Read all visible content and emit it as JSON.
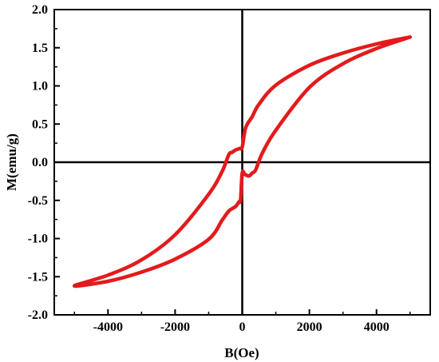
{
  "chart_data": {
    "type": "line",
    "title": "",
    "xlabel": "B(Oe)",
    "ylabel": "M(emu/g)",
    "xlim": [
      -5600,
      5600
    ],
    "ylim": [
      -2.0,
      2.0
    ],
    "xticks": [
      -4000,
      -2000,
      0,
      2000,
      4000
    ],
    "xtick_labels": [
      "-4000",
      "-2000",
      "0",
      "2000",
      "4000"
    ],
    "yticks": [
      -2.0,
      -1.5,
      -1.0,
      -0.5,
      0.0,
      0.5,
      1.0,
      1.5,
      2.0
    ],
    "ytick_labels": [
      "-2.0",
      "-1.5",
      "-1.0",
      "-0.5",
      "0.0",
      "0.5",
      "1.0",
      "1.5",
      "2.0"
    ],
    "grid": false,
    "zero_lines": true,
    "colors": {
      "series": "#e31a1c",
      "axes": "#000000"
    },
    "series": [
      {
        "name": "",
        "x": [
          5000,
          4000,
          3000,
          2000,
          1000,
          500,
          300,
          100,
          0,
          -80,
          -200,
          -300,
          -400,
          -600,
          -1000,
          -2000,
          -3000,
          -4000,
          -5000,
          -4000,
          -3000,
          -2000,
          -1000,
          -600,
          -400,
          -200,
          -100,
          -50,
          0,
          80,
          200,
          300,
          400,
          600,
          1000,
          2000,
          3000,
          4000,
          5000
        ],
        "y": [
          1.64,
          1.55,
          1.43,
          1.27,
          1.01,
          0.76,
          0.6,
          0.45,
          0.2,
          0.18,
          0.16,
          0.13,
          0.1,
          -0.12,
          -0.42,
          -0.95,
          -1.28,
          -1.48,
          -1.62,
          -1.56,
          -1.44,
          -1.27,
          -1.01,
          -0.76,
          -0.64,
          -0.58,
          -0.52,
          -0.49,
          -0.14,
          -0.16,
          -0.18,
          -0.14,
          -0.1,
          0.12,
          0.42,
          0.98,
          1.29,
          1.49,
          1.64
        ]
      }
    ]
  }
}
